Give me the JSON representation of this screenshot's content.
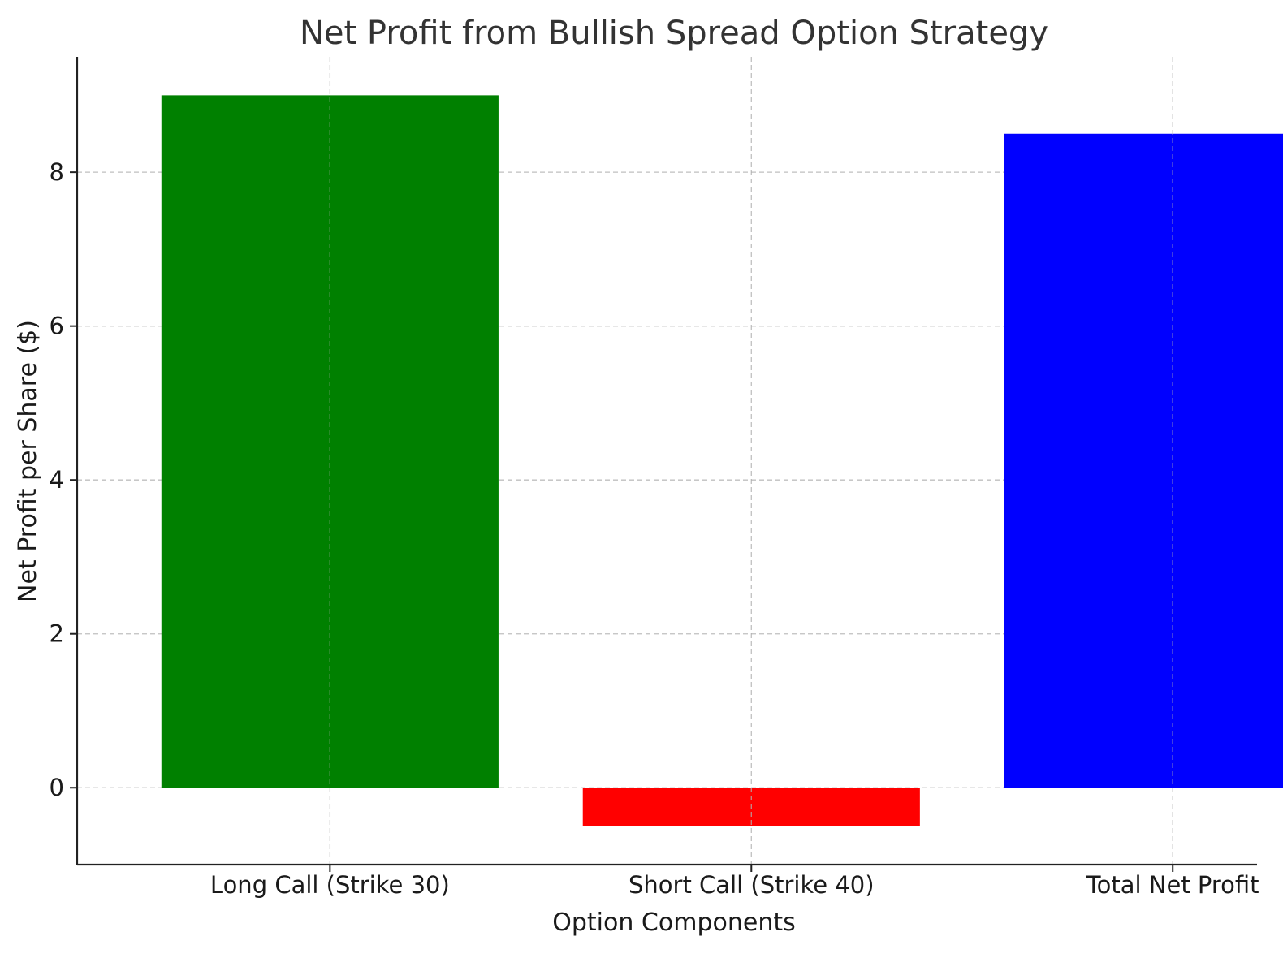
{
  "chart_data": {
    "type": "bar",
    "title": "Net Profit from Bullish Spread Option Strategy",
    "xlabel": "Option Components",
    "ylabel": "Net Profit per Share ($)",
    "categories": [
      "Long Call (Strike 30)",
      "Short Call (Strike 40)",
      "Total Net Profit"
    ],
    "values": [
      9,
      -0.5,
      8.5
    ],
    "colors": [
      "#008000",
      "#ff0000",
      "#0000ff"
    ],
    "ylim": [
      -1,
      9.5
    ],
    "yticks": [
      0,
      2,
      4,
      6,
      8
    ],
    "grid": true
  }
}
